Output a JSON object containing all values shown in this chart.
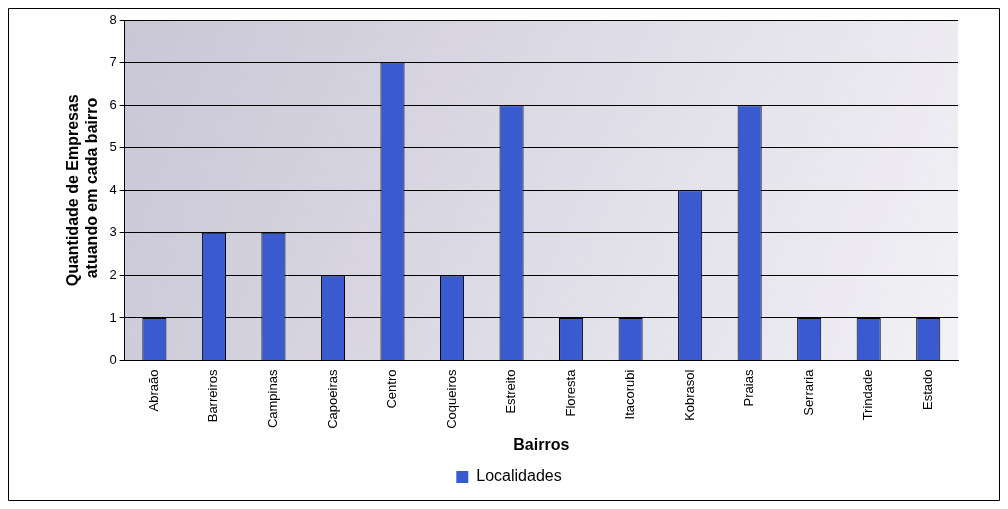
{
  "chart_data": {
    "type": "bar",
    "xlabel": "Bairros",
    "ylabel": "Quantidade de Empresas atuando em cada bairro",
    "categories": [
      "Abraão",
      "Barreiros",
      "Campinas",
      "Capoeiras",
      "Centro",
      "Coqueiros",
      "Estreito",
      "Floresta",
      "Itacorubi",
      "Kobrasol",
      "Praias",
      "Serraria",
      "Trindade",
      "Estado"
    ],
    "series": [
      {
        "name": "Localidades",
        "color": "#3a5bd0",
        "values": [
          1,
          3,
          3,
          2,
          7,
          2,
          6,
          1,
          1,
          4,
          6,
          1,
          1,
          1
        ]
      }
    ],
    "ylim": [
      0,
      8
    ],
    "yticks": [
      0,
      1,
      2,
      3,
      4,
      5,
      6,
      7,
      8
    ],
    "grid": "y",
    "legend": "bottom"
  }
}
